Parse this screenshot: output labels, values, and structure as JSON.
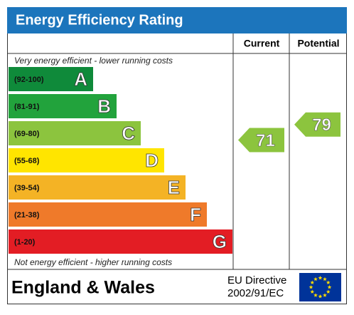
{
  "header": {
    "title": "Energy Efficiency Rating"
  },
  "columns": {
    "current": "Current",
    "potential": "Potential"
  },
  "notes": {
    "top": "Very energy efficient - lower running costs",
    "bottom": "Not energy efficient - higher running costs"
  },
  "bands": [
    {
      "range": "(92-100)",
      "letter": "A",
      "color": "#0f8a3a"
    },
    {
      "range": "(81-91)",
      "letter": "B",
      "color": "#22a33c"
    },
    {
      "range": "(69-80)",
      "letter": "C",
      "color": "#8cc43e"
    },
    {
      "range": "(55-68)",
      "letter": "D",
      "color": "#ffe500"
    },
    {
      "range": "(39-54)",
      "letter": "E",
      "color": "#f4b325"
    },
    {
      "range": "(21-38)",
      "letter": "F",
      "color": "#ef7a2a"
    },
    {
      "range": "(1-20)",
      "letter": "G",
      "color": "#e31d24"
    }
  ],
  "ratings": {
    "current": 71,
    "potential": 79
  },
  "footer": {
    "region": "England & Wales",
    "directive": [
      "EU Directive",
      "2002/91/EC"
    ]
  }
}
